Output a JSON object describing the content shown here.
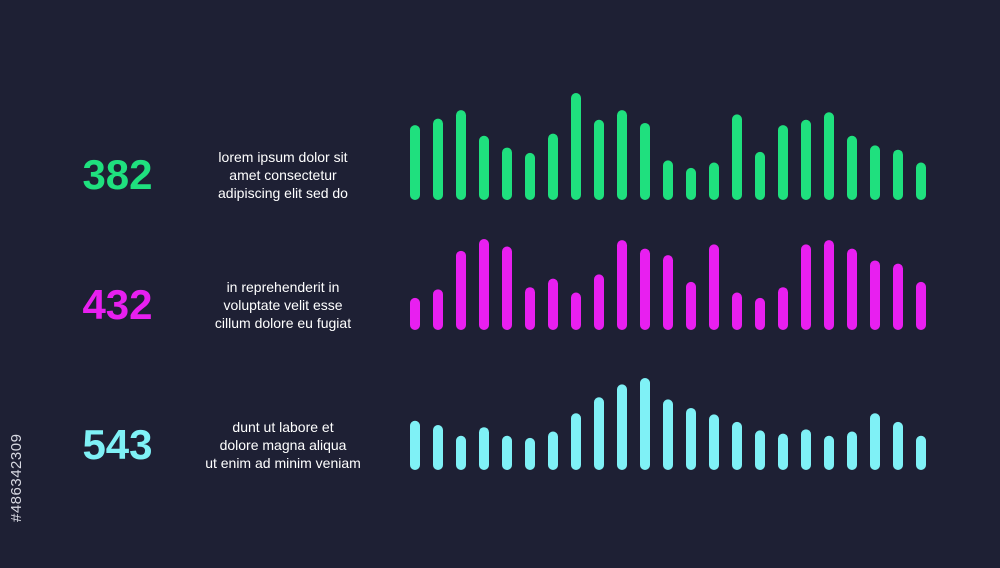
{
  "chart_data": [
    {
      "type": "bar",
      "metric": "382",
      "description": [
        "lorem ipsum dolor sit",
        "amet consectetur",
        "adipiscing elit sed do"
      ],
      "color": "#1fe07e",
      "values": [
        70,
        76,
        84,
        60,
        49,
        44,
        62,
        100,
        75,
        84,
        72,
        37,
        30,
        35,
        80,
        45,
        70,
        75,
        82,
        60,
        51,
        47,
        35
      ]
    },
    {
      "type": "bar",
      "metric": "432",
      "description": [
        "in reprehenderit in",
        "voluptate velit esse",
        "cillum dolore eu fugiat"
      ],
      "color": "#e81ff0",
      "values": [
        30,
        38,
        74,
        85,
        78,
        40,
        48,
        35,
        52,
        84,
        76,
        70,
        45,
        80,
        35,
        30,
        40,
        80,
        84,
        76,
        65,
        62,
        45
      ]
    },
    {
      "type": "bar",
      "metric": "543",
      "description": [
        "dunt ut labore et",
        "dolore magna aliqua",
        "ut enim ad minim veniam"
      ],
      "color": "#7ff1f6",
      "values": [
        46,
        42,
        32,
        40,
        32,
        30,
        36,
        53,
        68,
        80,
        86,
        66,
        58,
        52,
        45,
        37,
        34,
        38,
        32,
        36,
        53,
        45,
        32
      ]
    }
  ],
  "watermark_id": "#486342309"
}
